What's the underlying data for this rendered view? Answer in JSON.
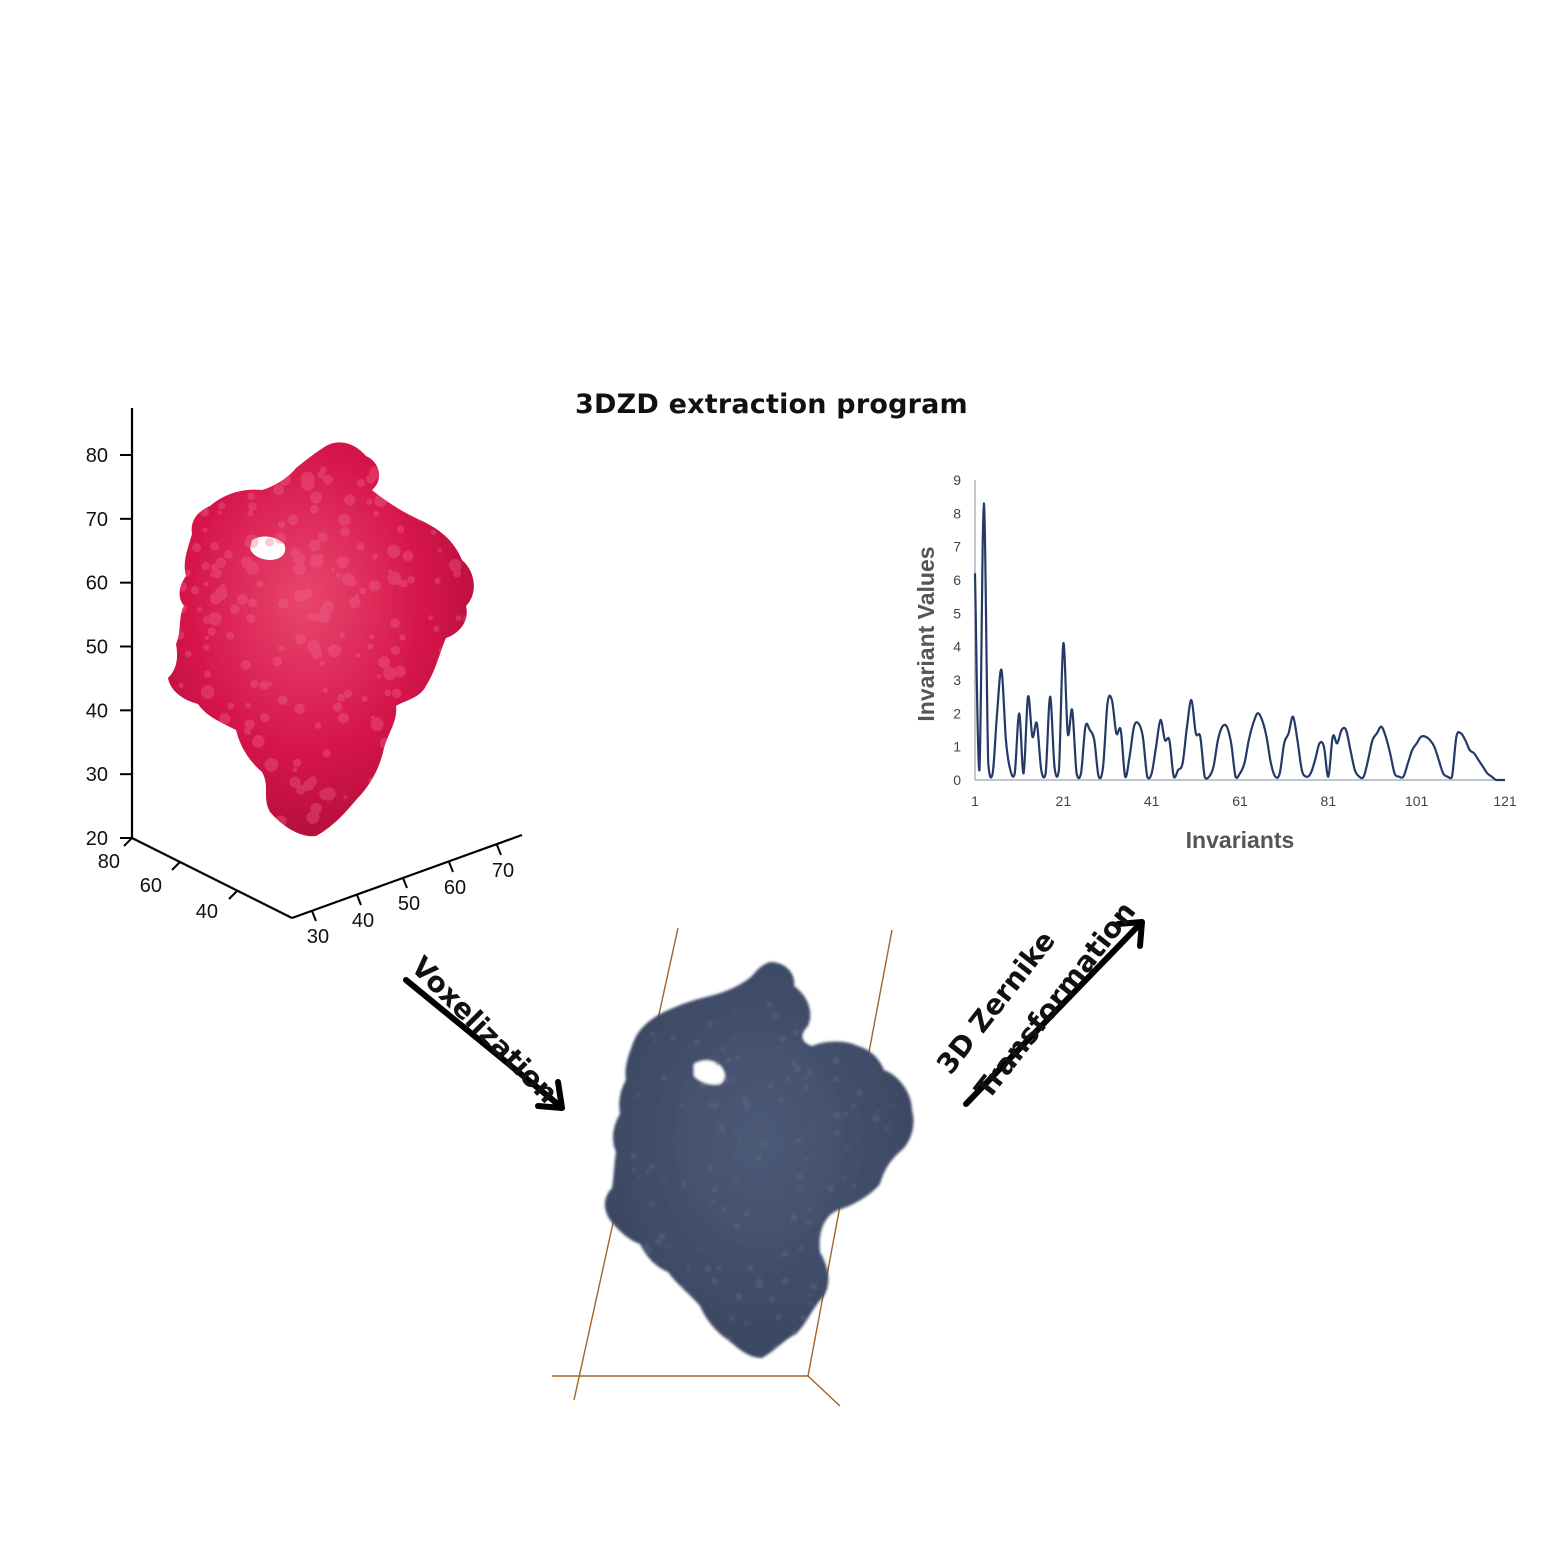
{
  "title": "3DZD extraction program",
  "arrows": {
    "voxelization": "Voxelization",
    "zernike_line1": "3D Zernike",
    "zernike_line2": "Transformation"
  },
  "protein_axes": {
    "z_ticks": [
      "80",
      "70",
      "60",
      "50",
      "40",
      "30",
      "20"
    ],
    "x_ticks": [
      "80",
      "60",
      "40"
    ],
    "y_ticks": [
      "30",
      "40",
      "50",
      "60",
      "70"
    ]
  },
  "colors": {
    "protein": "#d6154a",
    "voxel": "#3d4a64",
    "chart_line": "#243a66",
    "box_line": "#a0642c"
  },
  "chart_data": {
    "type": "line",
    "xlabel": "Invariants",
    "ylabel": "Invariant Values",
    "x_ticks": [
      "1",
      "21",
      "41",
      "61",
      "81",
      "101",
      "121"
    ],
    "y_ticks": [
      "0",
      "1",
      "2",
      "3",
      "4",
      "5",
      "6",
      "7",
      "8",
      "9"
    ],
    "xlim": [
      1,
      121
    ],
    "ylim": [
      0,
      9
    ],
    "series": [
      {
        "x": [
          1,
          2,
          3,
          4,
          5,
          6,
          7,
          8,
          9,
          10,
          11,
          12,
          13,
          14,
          15,
          16,
          17,
          18,
          19,
          20,
          21,
          22,
          23,
          24,
          25,
          26,
          27,
          28,
          29,
          30,
          31,
          32,
          33,
          34,
          35,
          36,
          37,
          38,
          39,
          40,
          41,
          42,
          43,
          44,
          45,
          46,
          47,
          48,
          49,
          50,
          51,
          52,
          53,
          54,
          55,
          56,
          57,
          58,
          59,
          60,
          61,
          62,
          63,
          64,
          65,
          66,
          67,
          68,
          69,
          70,
          71,
          72,
          73,
          74,
          75,
          76,
          77,
          78,
          79,
          80,
          81,
          82,
          83,
          84,
          85,
          86,
          87,
          88,
          89,
          90,
          91,
          92,
          93,
          94,
          95,
          96,
          97,
          98,
          99,
          100,
          101,
          102,
          103,
          104,
          105,
          106,
          107,
          108,
          109,
          110,
          111,
          112,
          113,
          114,
          115,
          116,
          117,
          118,
          119,
          120,
          121
        ],
        "y": [
          6.2,
          0.3,
          8.3,
          0.5,
          0.2,
          2.0,
          3.3,
          1.2,
          0.3,
          0.2,
          2.0,
          0.2,
          2.5,
          1.3,
          1.7,
          0.3,
          0.2,
          2.5,
          0.4,
          0.3,
          4.1,
          1.4,
          2.1,
          0.2,
          0.2,
          1.6,
          1.5,
          1.2,
          0.1,
          0.4,
          2.3,
          2.4,
          1.4,
          1.5,
          0.1,
          0.7,
          1.6,
          1.7,
          1.3,
          0.1,
          0.2,
          1.0,
          1.8,
          1.2,
          1.2,
          0.1,
          0.3,
          0.5,
          1.6,
          2.4,
          1.4,
          1.3,
          0.1,
          0.1,
          0.4,
          1.2,
          1.6,
          1.6,
          1.1,
          0.1,
          0.2,
          0.5,
          1.2,
          1.7,
          2.0,
          1.8,
          1.3,
          0.5,
          0.1,
          0.2,
          1.1,
          1.4,
          1.9,
          1.2,
          0.3,
          0.1,
          0.2,
          0.6,
          1.1,
          1.0,
          0.1,
          1.3,
          1.1,
          1.5,
          1.5,
          0.9,
          0.3,
          0.1,
          0.1,
          0.6,
          1.2,
          1.4,
          1.6,
          1.3,
          0.8,
          0.2,
          0.1,
          0.1,
          0.5,
          0.9,
          1.1,
          1.3,
          1.3,
          1.2,
          1.0,
          0.6,
          0.2,
          0.1,
          0.1,
          1.3,
          1.4,
          1.2,
          0.9,
          0.8,
          0.6,
          0.4,
          0.2,
          0.1,
          0.0,
          0.0,
          0.0
        ]
      }
    ]
  }
}
